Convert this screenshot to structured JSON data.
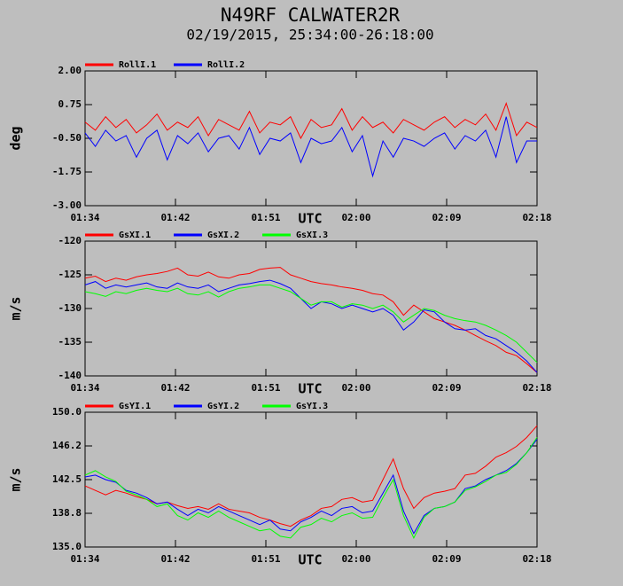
{
  "title": "N49RF CALWATER2R",
  "subtitle": "02/19/2015, 25:34:00-26:18:00",
  "chart_data": [
    {
      "type": "line",
      "xlabel": "UTC",
      "ylabel": "deg",
      "x": [
        94,
        95,
        96,
        97,
        98,
        99,
        100,
        101,
        102,
        103,
        104,
        105,
        106,
        107,
        108,
        109,
        110,
        111,
        112,
        113,
        114,
        115,
        116,
        117,
        118,
        119,
        120,
        121,
        122,
        123,
        124,
        125,
        126,
        127,
        128,
        129,
        130,
        131,
        132,
        133,
        134,
        135,
        136,
        137,
        138
      ],
      "xlim": [
        94,
        138
      ],
      "xticks": [
        {
          "value": 94,
          "label": "01:34"
        },
        {
          "value": 102.8,
          "label": "01:42"
        },
        {
          "value": 111.6,
          "label": "01:51"
        },
        {
          "value": 120.4,
          "label": "02:00"
        },
        {
          "value": 129.2,
          "label": "02:09"
        },
        {
          "value": 138,
          "label": "02:18"
        }
      ],
      "ylim": [
        -3,
        2
      ],
      "yticks": [
        {
          "value": 2,
          "label": "2.00"
        },
        {
          "value": 0.75,
          "label": "0.75"
        },
        {
          "value": -0.5,
          "label": "-0.50"
        },
        {
          "value": -1.75,
          "label": "-1.75"
        },
        {
          "value": -3,
          "label": "-3.00"
        }
      ],
      "series": [
        {
          "name": "RollI.1",
          "color": "#ff0000",
          "values": [
            0.1,
            -0.2,
            0.3,
            -0.1,
            0.2,
            -0.3,
            0.0,
            0.4,
            -0.2,
            0.1,
            -0.1,
            0.3,
            -0.4,
            0.2,
            0.0,
            -0.2,
            0.5,
            -0.3,
            0.1,
            0.0,
            0.3,
            -0.5,
            0.2,
            -0.1,
            0.0,
            0.6,
            -0.2,
            0.3,
            -0.1,
            0.1,
            -0.3,
            0.2,
            0.0,
            -0.2,
            0.1,
            0.3,
            -0.1,
            0.2,
            0.0,
            0.4,
            -0.2,
            0.8,
            -0.4,
            0.1,
            -0.1
          ]
        },
        {
          "name": "RollI.2",
          "color": "#0000ff",
          "values": [
            -0.3,
            -0.8,
            -0.2,
            -0.6,
            -0.4,
            -1.2,
            -0.5,
            -0.2,
            -1.3,
            -0.4,
            -0.7,
            -0.3,
            -1.0,
            -0.5,
            -0.4,
            -0.9,
            -0.1,
            -1.1,
            -0.5,
            -0.6,
            -0.3,
            -1.4,
            -0.5,
            -0.7,
            -0.6,
            -0.1,
            -1.0,
            -0.4,
            -1.9,
            -0.6,
            -1.2,
            -0.5,
            -0.6,
            -0.8,
            -0.5,
            -0.3,
            -0.9,
            -0.4,
            -0.6,
            -0.2,
            -1.2,
            0.3,
            -1.4,
            -0.6,
            -0.6
          ]
        }
      ]
    },
    {
      "type": "line",
      "xlabel": "UTC",
      "ylabel": "m/s",
      "x": [
        94,
        95,
        96,
        97,
        98,
        99,
        100,
        101,
        102,
        103,
        104,
        105,
        106,
        107,
        108,
        109,
        110,
        111,
        112,
        113,
        114,
        115,
        116,
        117,
        118,
        119,
        120,
        121,
        122,
        123,
        124,
        125,
        126,
        127,
        128,
        129,
        130,
        131,
        132,
        133,
        134,
        135,
        136,
        137,
        138
      ],
      "xlim": [
        94,
        138
      ],
      "xticks": [
        {
          "value": 94,
          "label": "01:34"
        },
        {
          "value": 102.8,
          "label": "01:42"
        },
        {
          "value": 111.6,
          "label": "01:51"
        },
        {
          "value": 120.4,
          "label": "02:00"
        },
        {
          "value": 129.2,
          "label": "02:09"
        },
        {
          "value": 138,
          "label": "02:18"
        }
      ],
      "ylim": [
        -140,
        -120
      ],
      "yticks": [
        -120,
        -125,
        -130,
        -135,
        -140
      ],
      "series": [
        {
          "name": "GsXI.1",
          "color": "#ff0000",
          "values": [
            -125.5,
            -125.2,
            -126,
            -125.5,
            -125.8,
            -125.3,
            -125,
            -124.8,
            -124.5,
            -124,
            -125,
            -125.2,
            -124.6,
            -125.3,
            -125.5,
            -125,
            -124.8,
            -124.2,
            -124,
            -123.9,
            -125,
            -125.5,
            -126,
            -126.3,
            -126.5,
            -126.8,
            -127,
            -127.3,
            -127.8,
            -128,
            -129,
            -131,
            -129.5,
            -130.5,
            -131.5,
            -132,
            -132.5,
            -133.2,
            -134,
            -134.8,
            -135.5,
            -136.5,
            -137,
            -138.2,
            -139.5
          ]
        },
        {
          "name": "GsXI.2",
          "color": "#0000ff",
          "values": [
            -126.5,
            -126,
            -127,
            -126.5,
            -126.8,
            -126.5,
            -126.2,
            -126.8,
            -127,
            -126.2,
            -126.8,
            -127,
            -126.5,
            -127.5,
            -127,
            -126.5,
            -126.3,
            -126,
            -125.8,
            -126.3,
            -127,
            -128.5,
            -130,
            -129,
            -129.3,
            -130,
            -129.5,
            -130,
            -130.5,
            -130,
            -131,
            -133.2,
            -132,
            -130.2,
            -130.5,
            -132,
            -133,
            -133.2,
            -133,
            -134,
            -134.5,
            -135.5,
            -136.5,
            -137.8,
            -139.5
          ]
        },
        {
          "name": "GsXI.3",
          "color": "#00ff00",
          "values": [
            -127.5,
            -127.8,
            -128.2,
            -127.5,
            -127.8,
            -127.3,
            -127,
            -127.3,
            -127.5,
            -127,
            -127.8,
            -128,
            -127.5,
            -128.3,
            -127.5,
            -127,
            -126.8,
            -126.5,
            -126.5,
            -127,
            -127.5,
            -128.5,
            -129.5,
            -129,
            -129,
            -129.8,
            -129.3,
            -129.5,
            -130,
            -129.5,
            -130.5,
            -132,
            -131,
            -130,
            -130.3,
            -131,
            -131.5,
            -131.8,
            -132,
            -132.5,
            -133.2,
            -134,
            -135,
            -136.5,
            -138
          ]
        }
      ]
    },
    {
      "type": "line",
      "xlabel": "UTC",
      "ylabel": "m/s",
      "x": [
        94,
        95,
        96,
        97,
        98,
        99,
        100,
        101,
        102,
        103,
        104,
        105,
        106,
        107,
        108,
        109,
        110,
        111,
        112,
        113,
        114,
        115,
        116,
        117,
        118,
        119,
        120,
        121,
        122,
        123,
        124,
        125,
        126,
        127,
        128,
        129,
        130,
        131,
        132,
        133,
        134,
        135,
        136,
        137,
        138
      ],
      "xlim": [
        94,
        138
      ],
      "xticks": [
        {
          "value": 94,
          "label": "01:34"
        },
        {
          "value": 102.8,
          "label": "01:42"
        },
        {
          "value": 111.6,
          "label": "01:51"
        },
        {
          "value": 120.4,
          "label": "02:00"
        },
        {
          "value": 129.2,
          "label": "02:09"
        },
        {
          "value": 138,
          "label": "02:18"
        }
      ],
      "ylim": [
        135,
        150
      ],
      "yticks": [
        {
          "value": 150,
          "label": "150.0"
        },
        {
          "value": 146.25,
          "label": "146.2"
        },
        {
          "value": 142.5,
          "label": "142.5"
        },
        {
          "value": 138.75,
          "label": "138.8"
        },
        {
          "value": 135,
          "label": "135.0"
        }
      ],
      "series": [
        {
          "name": "GsYI.1",
          "color": "#ff0000",
          "values": [
            141.8,
            141.3,
            140.8,
            141.3,
            141,
            140.6,
            140.3,
            139.8,
            140,
            139.6,
            139.3,
            139.5,
            139.2,
            139.8,
            139.2,
            139,
            138.8,
            138.3,
            138,
            137.6,
            137.3,
            138,
            138.5,
            139.3,
            139.5,
            140.3,
            140.5,
            140,
            140.2,
            142.5,
            144.8,
            141.5,
            139.3,
            140.5,
            141,
            141.2,
            141.5,
            143,
            143.2,
            144,
            145,
            145.5,
            146.2,
            147.2,
            148.5
          ]
        },
        {
          "name": "GsYI.2",
          "color": "#0000ff",
          "values": [
            142.8,
            143,
            142.5,
            142.2,
            141.3,
            141,
            140.5,
            139.8,
            140,
            139.2,
            138.5,
            139.2,
            138.8,
            139.5,
            139,
            138.5,
            138,
            137.5,
            138,
            137,
            136.8,
            137.8,
            138.3,
            139,
            138.5,
            139.3,
            139.5,
            138.8,
            139,
            141,
            143,
            139,
            136.5,
            138.5,
            139.3,
            139.5,
            140,
            141.5,
            141.8,
            142.5,
            143,
            143.5,
            144.3,
            145.5,
            147
          ]
        },
        {
          "name": "GsYI.3",
          "color": "#00ff00",
          "values": [
            143,
            143.5,
            142.8,
            142.3,
            141.2,
            140.8,
            140.3,
            139.5,
            139.8,
            138.5,
            138,
            138.8,
            138.3,
            139,
            138.3,
            137.8,
            137.3,
            136.8,
            137,
            136.2,
            136,
            137.2,
            137.5,
            138.2,
            137.8,
            138.5,
            138.8,
            138.2,
            138.3,
            140.5,
            142.5,
            138.5,
            136,
            138.3,
            139.3,
            139.5,
            140,
            141.3,
            141.7,
            142.3,
            143,
            143.3,
            144.2,
            145.5,
            147.2
          ]
        }
      ]
    }
  ]
}
